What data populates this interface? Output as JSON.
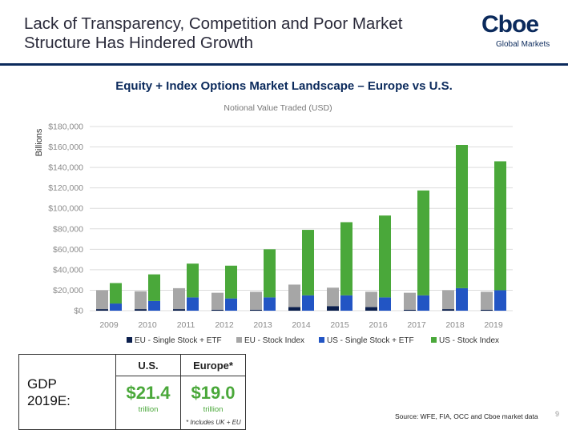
{
  "header": {
    "title_line1": "Lack of Transparency, Competition and Poor Market",
    "title_line2": "Structure Has Hindered Growth",
    "logo_text": "Cboe",
    "logo_sub": "Global Markets"
  },
  "chart_data": {
    "type": "bar",
    "stacked": true,
    "title": "Equity + Index Options Market Landscape – Europe vs U.S.",
    "subtitle": "Notional Value Traded (USD)",
    "ylabel": "Billions",
    "xlabel": "",
    "ylim": [
      0,
      180000
    ],
    "yticks": [
      "$0",
      "$20,000",
      "$40,000",
      "$60,000",
      "$80,000",
      "$100,000",
      "$120,000",
      "$140,000",
      "$160,000",
      "$180,000"
    ],
    "categories": [
      "2009",
      "2010",
      "2011",
      "2012",
      "2013",
      "2014",
      "2015",
      "2016",
      "2017",
      "2018",
      "2019"
    ],
    "eu_series": [
      {
        "name": "EU - Single Stock + ETF",
        "color": "#0b1f4d",
        "values": [
          1500,
          1500,
          1500,
          1000,
          1000,
          3500,
          4500,
          3500,
          1000,
          1500,
          1000
        ]
      },
      {
        "name": "EU - Stock Index",
        "color": "#a6a6a6",
        "values": [
          18500,
          17500,
          20500,
          16500,
          17500,
          22000,
          18000,
          15000,
          16500,
          18500,
          17500
        ]
      }
    ],
    "us_series": [
      {
        "name": "US - Single Stock + ETF",
        "color": "#2255c4",
        "values": [
          7000,
          9500,
          13000,
          12000,
          13000,
          15000,
          15000,
          13000,
          15000,
          22000,
          20000
        ]
      },
      {
        "name": "US - Stock Index",
        "color": "#4aa83a",
        "values": [
          20000,
          26000,
          33000,
          32000,
          47000,
          64000,
          71500,
          80000,
          102500,
          140000,
          126000
        ]
      }
    ],
    "legend": [
      "EU - Single Stock + ETF",
      "EU - Stock Index",
      "US - Single Stock + ETF",
      "US - Stock Index"
    ],
    "legend_colors": [
      "#0b1f4d",
      "#a6a6a6",
      "#2255c4",
      "#4aa83a"
    ],
    "grid": true,
    "legend_position": "bottom"
  },
  "gdp_table": {
    "row_label_1": "GDP",
    "row_label_2": "2019E:",
    "col_us": "U.S.",
    "col_europe": "Europe*",
    "us_value": "$21.4",
    "us_unit": "trillion",
    "europe_value": "$19.0",
    "europe_unit": "trillion"
  },
  "footnote": "* Includes UK + EU",
  "source": "Source: WFE, FIA, OCC and Cboe market data",
  "page_number": "9"
}
